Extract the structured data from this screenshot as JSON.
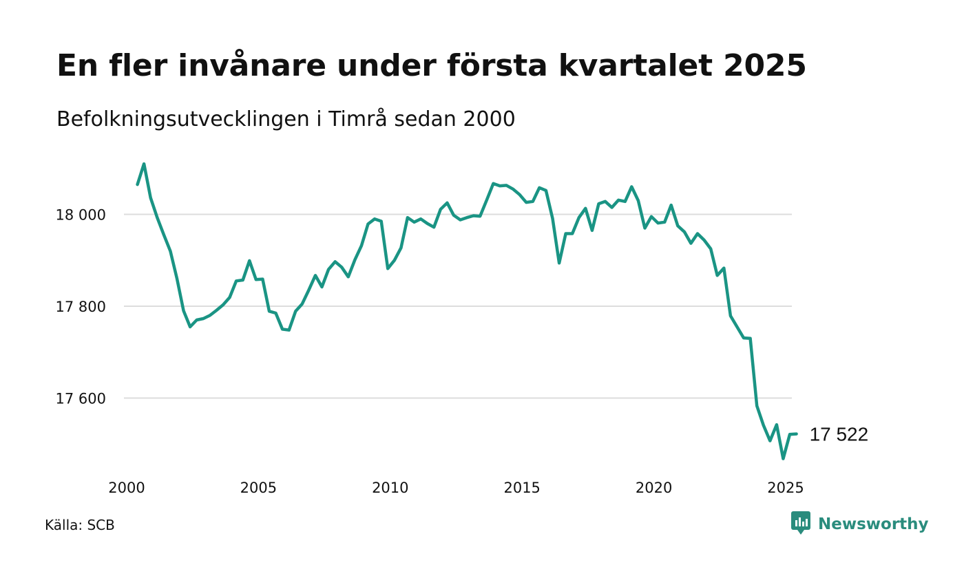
{
  "title": "En fler invånare under första kvartalet 2025",
  "subtitle": "Befolkningsutvecklingen i Timrå sedan 2000",
  "source": "Källa: SCB",
  "brand": "Newsworthy",
  "colors": {
    "line": "#1a9484",
    "grid": "#dddddd",
    "brand": "#2a8c7d"
  },
  "chart_data": {
    "type": "line",
    "title": "En fler invånare under första kvartalet 2025",
    "subtitle": "Befolkningsutvecklingen i Timrå sedan 2000",
    "xlabel": "",
    "ylabel": "",
    "x_ticks": [
      2000,
      2005,
      2010,
      2015,
      2020,
      2025
    ],
    "y_ticks": [
      17600,
      17800,
      18000
    ],
    "y_tick_labels": [
      "17 600",
      "17 800",
      "18 000"
    ],
    "xlim": [
      2000,
      2025
    ],
    "ylim": [
      17470,
      18110
    ],
    "grid": "horizontal",
    "end_label": "17 522",
    "series": [
      {
        "x": [
          2000.25,
          2000.5,
          2000.75,
          2001,
          2001.25,
          2001.5,
          2001.75,
          2002,
          2002.25,
          2002.5,
          2002.75,
          2003,
          2003.25,
          2003.5,
          2003.75,
          2004,
          2004.25,
          2004.5,
          2004.75,
          2005,
          2005.25,
          2005.5,
          2005.75,
          2006,
          2006.25,
          2006.5,
          2006.75,
          2007,
          2007.25,
          2007.5,
          2007.75,
          2008,
          2008.25,
          2008.5,
          2008.75,
          2009,
          2009.25,
          2009.5,
          2009.75,
          2010,
          2010.25,
          2010.5,
          2010.75,
          2011,
          2011.25,
          2011.5,
          2011.75,
          2012,
          2012.25,
          2012.5,
          2012.75,
          2013,
          2013.25,
          2013.5,
          2013.75,
          2014,
          2014.25,
          2014.5,
          2014.75,
          2015,
          2015.25,
          2015.5,
          2015.75,
          2016,
          2016.25,
          2016.5,
          2016.75,
          2017,
          2017.25,
          2017.5,
          2017.75,
          2018,
          2018.25,
          2018.5,
          2018.75,
          2019,
          2019.25,
          2019.5,
          2019.75,
          2020,
          2020.25,
          2020.5,
          2020.75,
          2021,
          2021.25,
          2021.5,
          2021.75,
          2022,
          2022.25,
          2022.5,
          2022.75,
          2023,
          2023.25,
          2023.5,
          2023.75,
          2024,
          2024.25,
          2024.5,
          2024.75,
          2025,
          2025.25
        ],
        "values": [
          18065,
          18110,
          18036,
          17993,
          17956,
          17920,
          17860,
          17790,
          17755,
          17770,
          17773,
          17780,
          17791,
          17803,
          17819,
          17855,
          17857,
          17899,
          17858,
          17859,
          17789,
          17785,
          17750,
          17748,
          17789,
          17805,
          17835,
          17867,
          17842,
          17880,
          17897,
          17885,
          17864,
          17901,
          17932,
          17979,
          17990,
          17985,
          17882,
          17900,
          17927,
          17993,
          17983,
          17990,
          17980,
          17972,
          18011,
          18025,
          17998,
          17988,
          17993,
          17997,
          17996,
          18031,
          18067,
          18062,
          18063,
          18055,
          18043,
          18026,
          18028,
          18058,
          18052,
          17991,
          17894,
          17958,
          17958,
          17993,
          18013,
          17965,
          18023,
          18028,
          18015,
          18031,
          18028,
          18060,
          18030,
          17970,
          17995,
          17981,
          17983,
          18020,
          17975,
          17962,
          17937,
          17958,
          17944,
          17925,
          17867,
          17883,
          17779,
          17755,
          17731,
          17730,
          17583,
          17541,
          17507,
          17542,
          17468,
          17521,
          17522
        ]
      }
    ]
  }
}
